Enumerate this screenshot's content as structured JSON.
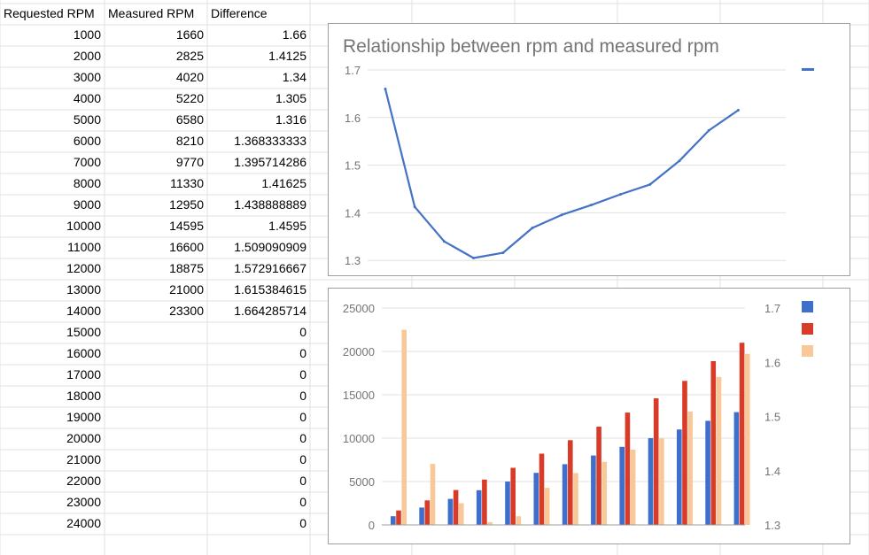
{
  "sheet": {
    "headers": [
      "Requested RPM",
      "Measured RPM",
      "Difference"
    ],
    "rows": [
      [
        "1000",
        "1660",
        "1.66"
      ],
      [
        "2000",
        "2825",
        "1.4125"
      ],
      [
        "3000",
        "4020",
        "1.34"
      ],
      [
        "4000",
        "5220",
        "1.305"
      ],
      [
        "5000",
        "6580",
        "1.316"
      ],
      [
        "6000",
        "8210",
        "1.368333333"
      ],
      [
        "7000",
        "9770",
        "1.395714286"
      ],
      [
        "8000",
        "11330",
        "1.41625"
      ],
      [
        "9000",
        "12950",
        "1.438888889"
      ],
      [
        "10000",
        "14595",
        "1.4595"
      ],
      [
        "11000",
        "16600",
        "1.509090909"
      ],
      [
        "12000",
        "18875",
        "1.572916667"
      ],
      [
        "13000",
        "21000",
        "1.615384615"
      ],
      [
        "14000",
        "23300",
        "1.664285714"
      ],
      [
        "15000",
        "",
        "0"
      ],
      [
        "16000",
        "",
        "0"
      ],
      [
        "17000",
        "",
        "0"
      ],
      [
        "18000",
        "",
        "0"
      ],
      [
        "19000",
        "",
        "0"
      ],
      [
        "20000",
        "",
        "0"
      ],
      [
        "21000",
        "",
        "0"
      ],
      [
        "22000",
        "",
        "0"
      ],
      [
        "23000",
        "",
        "0"
      ],
      [
        "24000",
        "",
        "0"
      ]
    ]
  },
  "chart_data": [
    {
      "type": "line",
      "title": "Relationship between rpm and measured rpm",
      "xlabel": "",
      "ylabel": "",
      "ylim": [
        1.28,
        1.7
      ],
      "yticks": [
        "1.7",
        "1.6",
        "1.5",
        "1.4",
        "1.3"
      ],
      "grid": true,
      "legend": "top-right",
      "line_color": "#4472c4",
      "series": [
        {
          "values": [
            1.66,
            1.4125,
            1.34,
            1.305,
            1.316,
            1.368333333,
            1.395714286,
            1.41625,
            1.438888889,
            1.4595,
            1.509090909,
            1.572916667,
            1.615384615
          ]
        }
      ]
    },
    {
      "type": "bar",
      "title": "",
      "xlabel": "",
      "ylabel": "",
      "ylim": [
        0,
        25000
      ],
      "y2lim": [
        1.3,
        1.7
      ],
      "yticks": [
        "25000",
        "20000",
        "15000",
        "10000",
        "5000",
        "0"
      ],
      "y2ticks": [
        "1.7",
        "1.6",
        "1.5",
        "1.4",
        "1.3"
      ],
      "grid": true,
      "legend": "top-right",
      "series": [
        {
          "color": "#3e6fcc",
          "axis": "left",
          "values": [
            1000,
            2000,
            3000,
            4000,
            5000,
            6000,
            7000,
            8000,
            9000,
            10000,
            11000,
            12000,
            13000
          ]
        },
        {
          "color": "#d83b27",
          "axis": "left",
          "values": [
            1660,
            2825,
            4020,
            5220,
            6580,
            8210,
            9770,
            11330,
            12950,
            14595,
            16600,
            18875,
            21000
          ]
        },
        {
          "color": "#f9c899",
          "axis": "right",
          "values": [
            1.66,
            1.4125,
            1.34,
            1.305,
            1.316,
            1.368333333,
            1.395714286,
            1.41625,
            1.438888889,
            1.4595,
            1.509090909,
            1.572916667,
            1.615384615
          ]
        }
      ]
    }
  ]
}
